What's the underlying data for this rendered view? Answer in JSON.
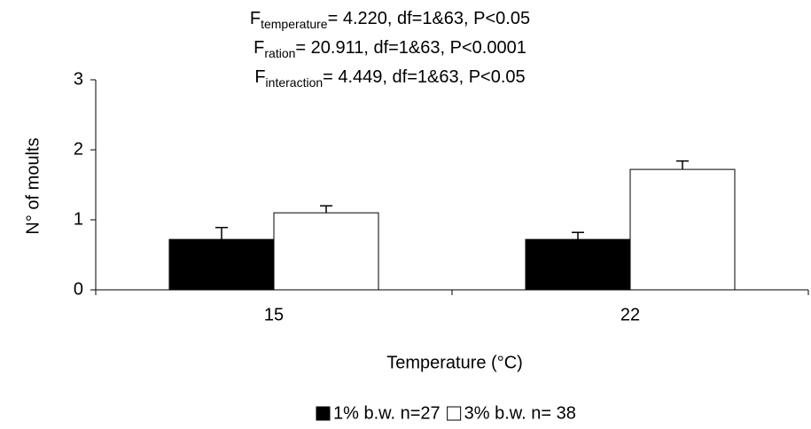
{
  "chart_data": {
    "type": "bar",
    "annotations": [
      {
        "main": "F",
        "sub": "temperature",
        "rest": "= 4.220, df=1&63, P<0.05"
      },
      {
        "main": "F",
        "sub": "ration",
        "rest": "= 20.911, df=1&63, P<0.0001"
      },
      {
        "main": "F",
        "sub": "interaction",
        "rest": "= 4.449, df=1&63, P<0.05"
      }
    ],
    "x_label": "Temperature (°C)",
    "y_label": "N° of moults",
    "categories": [
      "15",
      "22"
    ],
    "series": [
      {
        "name": "1% b.w. n=27",
        "color": "#000000",
        "values": [
          0.72,
          0.72
        ],
        "errors": [
          0.17,
          0.1
        ]
      },
      {
        "name": "3% b.w. n= 38",
        "color": "#ffffff",
        "values": [
          1.1,
          1.72
        ],
        "errors": [
          0.1,
          0.12
        ]
      }
    ],
    "ylim": [
      0,
      3
    ],
    "yticks": [
      0,
      1,
      2,
      3
    ]
  }
}
